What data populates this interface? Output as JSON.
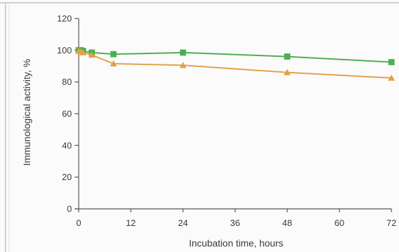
{
  "chart_data": {
    "type": "line",
    "title": "",
    "xlabel": "Incubation time, hours",
    "ylabel": "Immunological activity, %",
    "xlim": [
      0,
      72
    ],
    "ylim": [
      0,
      120
    ],
    "x_ticks": [
      0,
      12,
      24,
      36,
      48,
      60,
      72
    ],
    "y_ticks": [
      0,
      20,
      40,
      60,
      80,
      100,
      120
    ],
    "grid": false,
    "legend": "none",
    "series": [
      {
        "color": "#4fae4f",
        "marker": "square",
        "x": [
          0,
          0.5,
          1,
          3,
          8,
          24,
          48,
          72
        ],
        "y": [
          100,
          100,
          99.5,
          98.5,
          97.5,
          98.5,
          96,
          92.5
        ]
      },
      {
        "color": "#e3a04b",
        "marker": "triangle",
        "x": [
          0,
          0.5,
          1,
          3,
          8,
          24,
          48,
          72
        ],
        "y": [
          99.5,
          99,
          98.5,
          97,
          91.5,
          90.5,
          86,
          82.5
        ]
      }
    ]
  }
}
